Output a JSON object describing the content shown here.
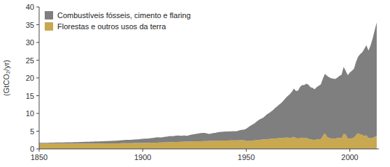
{
  "chart_data": {
    "type": "area",
    "stacked": true,
    "ylabel": "(GtCO₂/yr)",
    "xlim": [
      1850,
      2014
    ],
    "ylim": [
      0,
      40
    ],
    "xticks": [
      1850,
      1900,
      1950,
      2000
    ],
    "yticks": [
      0,
      5,
      10,
      15,
      20,
      25,
      30,
      35,
      40
    ],
    "grid": false,
    "legend": "upper-left",
    "x": [
      1850,
      1851,
      1852,
      1853,
      1854,
      1855,
      1856,
      1857,
      1858,
      1859,
      1860,
      1861,
      1862,
      1863,
      1864,
      1865,
      1866,
      1867,
      1868,
      1869,
      1870,
      1871,
      1872,
      1873,
      1874,
      1875,
      1876,
      1877,
      1878,
      1879,
      1880,
      1881,
      1882,
      1883,
      1884,
      1885,
      1886,
      1887,
      1888,
      1889,
      1890,
      1891,
      1892,
      1893,
      1894,
      1895,
      1896,
      1897,
      1898,
      1899,
      1900,
      1901,
      1902,
      1903,
      1904,
      1905,
      1906,
      1907,
      1908,
      1909,
      1910,
      1911,
      1912,
      1913,
      1914,
      1915,
      1916,
      1917,
      1918,
      1919,
      1920,
      1921,
      1922,
      1923,
      1924,
      1925,
      1926,
      1927,
      1928,
      1929,
      1930,
      1931,
      1932,
      1933,
      1934,
      1935,
      1936,
      1937,
      1938,
      1939,
      1940,
      1941,
      1942,
      1943,
      1944,
      1945,
      1946,
      1947,
      1948,
      1949,
      1950,
      1951,
      1952,
      1953,
      1954,
      1955,
      1956,
      1957,
      1958,
      1959,
      1960,
      1961,
      1962,
      1963,
      1964,
      1965,
      1966,
      1967,
      1968,
      1969,
      1970,
      1971,
      1972,
      1973,
      1974,
      1975,
      1976,
      1977,
      1978,
      1979,
      1980,
      1981,
      1982,
      1983,
      1984,
      1985,
      1986,
      1987,
      1988,
      1989,
      1990,
      1991,
      1992,
      1993,
      1994,
      1995,
      1996,
      1997,
      1998,
      1999,
      2000,
      2001,
      2002,
      2003,
      2004,
      2005,
      2006,
      2007,
      2008,
      2009,
      2010,
      2011,
      2012,
      2013
    ],
    "series": [
      {
        "name": "Florestas e outros usos da terra",
        "color": "#c8a850",
        "values": [
          1.5,
          1.5,
          1.5,
          1.5,
          1.5,
          1.5,
          1.5,
          1.51,
          1.51,
          1.51,
          1.51,
          1.51,
          1.51,
          1.51,
          1.52,
          1.52,
          1.52,
          1.52,
          1.52,
          1.52,
          1.52,
          1.53,
          1.53,
          1.53,
          1.53,
          1.53,
          1.54,
          1.54,
          1.54,
          1.54,
          1.55,
          1.55,
          1.55,
          1.56,
          1.56,
          1.56,
          1.57,
          1.57,
          1.57,
          1.58,
          1.6,
          1.62,
          1.63,
          1.63,
          1.63,
          1.64,
          1.65,
          1.66,
          1.67,
          1.68,
          1.7,
          1.72,
          1.73,
          1.74,
          1.75,
          1.76,
          1.77,
          1.78,
          1.79,
          1.8,
          1.82,
          1.84,
          1.86,
          1.89,
          1.91,
          1.93,
          1.95,
          1.98,
          2.0,
          2.02,
          2.04,
          2.05,
          2.07,
          2.09,
          2.11,
          2.12,
          2.14,
          2.16,
          2.18,
          2.2,
          2.22,
          2.23,
          2.24,
          2.25,
          2.27,
          2.28,
          2.3,
          2.32,
          2.33,
          2.35,
          2.36,
          2.37,
          2.38,
          2.39,
          2.4,
          2.41,
          2.42,
          2.43,
          2.44,
          2.45,
          2.2,
          2.25,
          2.3,
          2.35,
          2.4,
          2.5,
          2.55,
          2.6,
          2.65,
          2.7,
          2.75,
          2.8,
          2.85,
          2.9,
          2.95,
          3.0,
          3.05,
          3.1,
          3.15,
          3.2,
          3.2,
          3.1,
          3.2,
          3.4,
          3.1,
          2.9,
          3.1,
          3.2,
          3.0,
          3.1,
          2.9,
          2.7,
          2.6,
          2.5,
          2.7,
          2.7,
          2.8,
          3.7,
          4.4,
          3.4,
          3.1,
          2.9,
          3.0,
          2.9,
          3.1,
          3.2,
          3.0,
          4.2,
          4.1,
          2.9,
          2.9,
          3.0,
          3.2,
          3.9,
          4.4,
          4.1,
          3.9,
          3.7,
          3.8,
          3.1,
          3.0,
          3.1,
          3.4,
          3.7
        ]
      },
      {
        "name": "Combustíveis fósseis, cimento e flaring",
        "color": "#7f7f7f",
        "values": [
          0.2,
          0.21,
          0.22,
          0.23,
          0.24,
          0.25,
          0.26,
          0.27,
          0.28,
          0.29,
          0.3,
          0.31,
          0.32,
          0.33,
          0.34,
          0.35,
          0.36,
          0.38,
          0.39,
          0.4,
          0.42,
          0.44,
          0.46,
          0.48,
          0.49,
          0.51,
          0.53,
          0.55,
          0.57,
          0.59,
          0.61,
          0.63,
          0.65,
          0.67,
          0.69,
          0.7,
          0.72,
          0.75,
          0.78,
          0.81,
          0.85,
          0.88,
          0.9,
          0.91,
          0.92,
          0.95,
          0.98,
          1.02,
          1.05,
          1.09,
          1.13,
          1.15,
          1.17,
          1.22,
          1.28,
          1.33,
          1.4,
          1.48,
          1.45,
          1.45,
          1.52,
          1.57,
          1.64,
          1.75,
          1.66,
          1.69,
          1.78,
          1.8,
          1.71,
          1.65,
          1.76,
          1.64,
          1.72,
          1.87,
          1.95,
          2.03,
          2.12,
          2.2,
          2.26,
          2.3,
          2.3,
          2.13,
          1.98,
          2.06,
          2.17,
          2.24,
          2.34,
          2.43,
          2.46,
          2.5,
          2.55,
          2.52,
          2.55,
          2.58,
          2.6,
          2.55,
          2.7,
          2.85,
          2.97,
          2.99,
          3.5,
          3.9,
          4.2,
          4.5,
          4.8,
          5.2,
          5.6,
          5.9,
          6.1,
          6.5,
          7.0,
          7.3,
          7.7,
          8.1,
          8.6,
          9.0,
          9.5,
          9.9,
          10.5,
          11.1,
          11.7,
          12.3,
          12.9,
          13.6,
          13.2,
          13.5,
          14.4,
          14.8,
          15.0,
          15.3,
          15.2,
          14.7,
          14.6,
          14.3,
          14.7,
          15.1,
          15.4,
          16.1,
          16.8,
          17.2,
          17.1,
          17.0,
          16.8,
          16.8,
          17.0,
          17.4,
          17.9,
          18.9,
          17.9,
          17.9,
          18.6,
          19.0,
          19.4,
          20.6,
          21.6,
          22.6,
          23.3,
          24.5,
          25.4,
          24.6,
          26.1,
          28.0,
          30.0,
          32.0
        ]
      }
    ]
  }
}
